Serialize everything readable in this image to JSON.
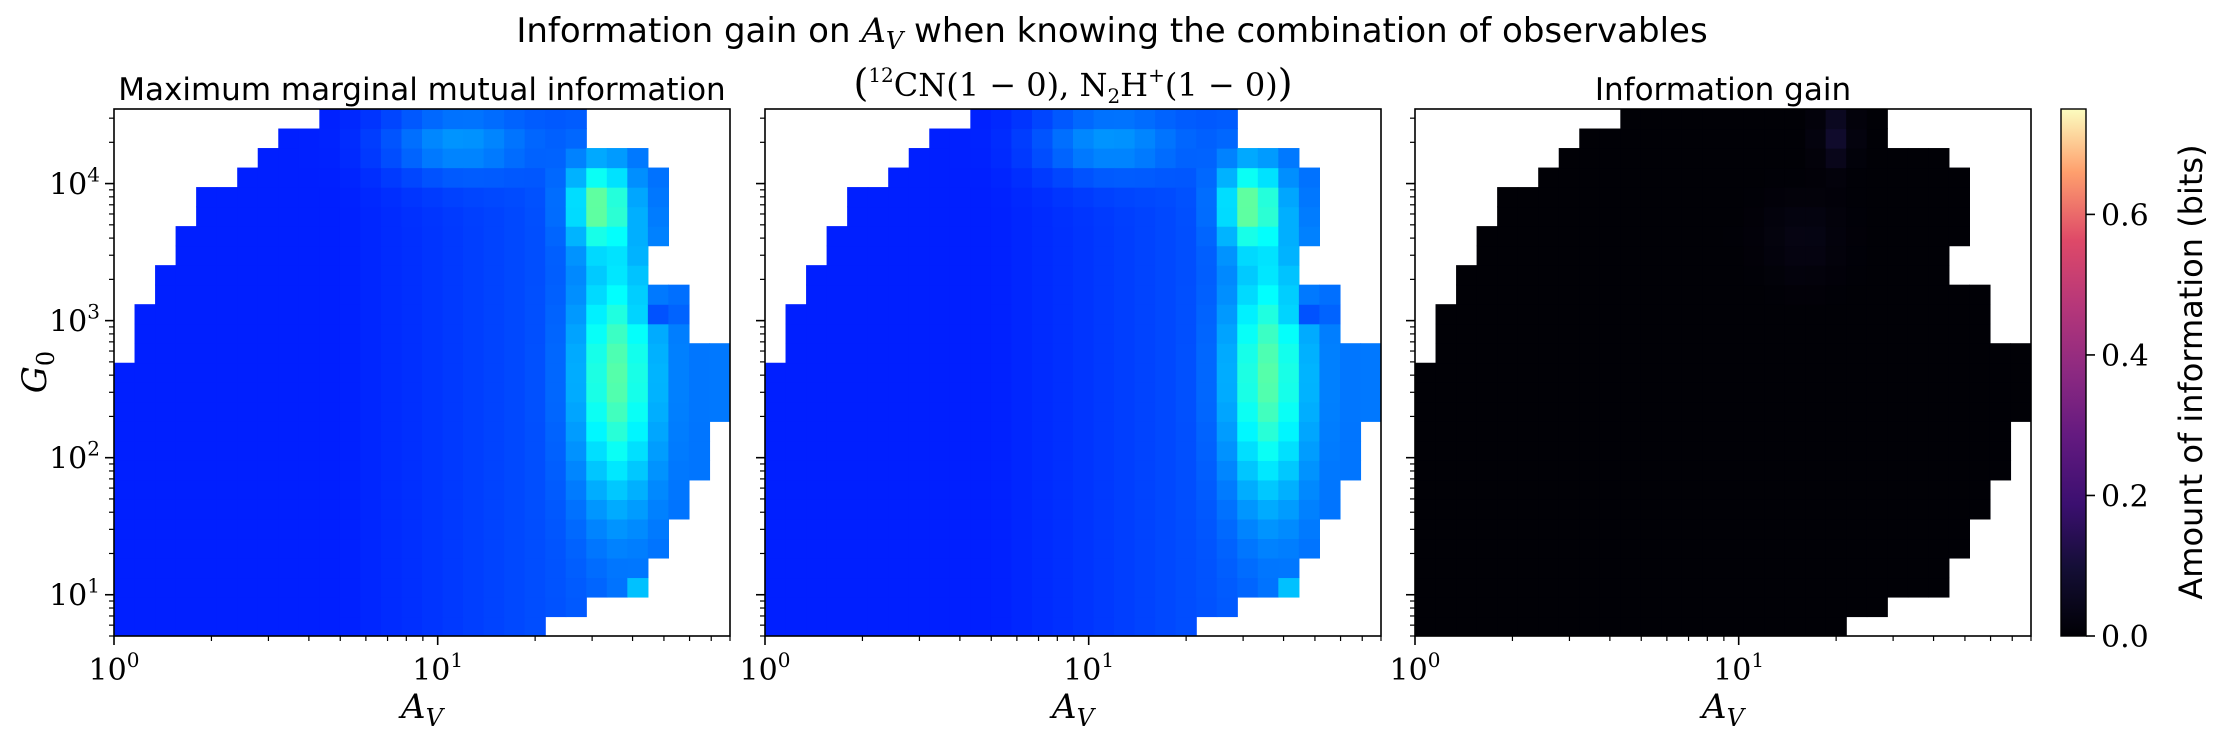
{
  "figure": {
    "suptitle": {
      "before": "Information gain on ",
      "var_main": "A",
      "var_sub": "V",
      "after": " when knowing the combination of observables"
    },
    "subtitle_mid": {
      "open": "(",
      "sup12": "12",
      "cn": "CN",
      "t1": "(1 − 0), N",
      "sub2": "2",
      "h": "H",
      "supplus": "+",
      "t2": "(1 − 0)",
      "close": ")"
    },
    "colors": {
      "low": "#02028a",
      "mid": "#0a3cf2",
      "high": "#19f2e3",
      "gain_low": "#000004",
      "gain_high": "#3d0f70"
    }
  },
  "chart_data": [
    {
      "type": "heatmap",
      "title": "Maximum marginal mutual information",
      "xlabel_main": "A",
      "xlabel_sub": "V",
      "ylabel_main": "G",
      "ylabel_sub": "0",
      "x_scale": "log",
      "y_scale": "log",
      "xlim": [
        1,
        80
      ],
      "ylim": [
        5,
        35000
      ],
      "x_ticks": [
        {
          "base": "10",
          "exp": "0"
        },
        {
          "base": "10",
          "exp": "1"
        }
      ],
      "y_ticks": [
        {
          "base": "10",
          "exp": "1"
        },
        {
          "base": "10",
          "exp": "2"
        },
        {
          "base": "10",
          "exp": "3"
        },
        {
          "base": "10",
          "exp": "4"
        }
      ],
      "value_range_bits": [
        0,
        0.75
      ],
      "approx_values_bits": {
        "low_Av_region": 0.03,
        "mid_band_Av_20_to_60": 0.2,
        "peak_Av_30_G0_8000": 0.3
      },
      "colormap": "jet"
    },
    {
      "type": "heatmap",
      "title": "",
      "xlabel_main": "A",
      "xlabel_sub": "V",
      "x_scale": "log",
      "y_scale": "log",
      "xlim": [
        1,
        80
      ],
      "ylim": [
        5,
        35000
      ],
      "x_ticks": [
        {
          "base": "10",
          "exp": "0"
        },
        {
          "base": "10",
          "exp": "1"
        }
      ],
      "value_range_bits": [
        0,
        0.75
      ],
      "approx_values_bits": {
        "low_Av_region": 0.03,
        "mid_band_Av_20_to_60": 0.2,
        "peak_Av_30_G0_8000": 0.3
      },
      "colormap": "jet"
    },
    {
      "type": "heatmap",
      "title": "Information gain",
      "xlabel_main": "A",
      "xlabel_sub": "V",
      "x_scale": "log",
      "y_scale": "log",
      "xlim": [
        1,
        80
      ],
      "ylim": [
        5,
        35000
      ],
      "x_ticks": [
        {
          "base": "10",
          "exp": "0"
        },
        {
          "base": "10",
          "exp": "1"
        }
      ],
      "value_range_bits": [
        0,
        0.75
      ],
      "approx_values_bits": {
        "background": 0.0,
        "peak_Av_20_G0_20000": 0.08,
        "peak_Av_70_G0_7000": 0.06
      },
      "colormap": "magma"
    }
  ],
  "colorbar": {
    "label": "Amount of information (bits)",
    "ticks": [
      "0.0",
      "0.2",
      "0.4",
      "0.6"
    ],
    "min": 0,
    "max": 0.75,
    "colormap": "magma"
  }
}
